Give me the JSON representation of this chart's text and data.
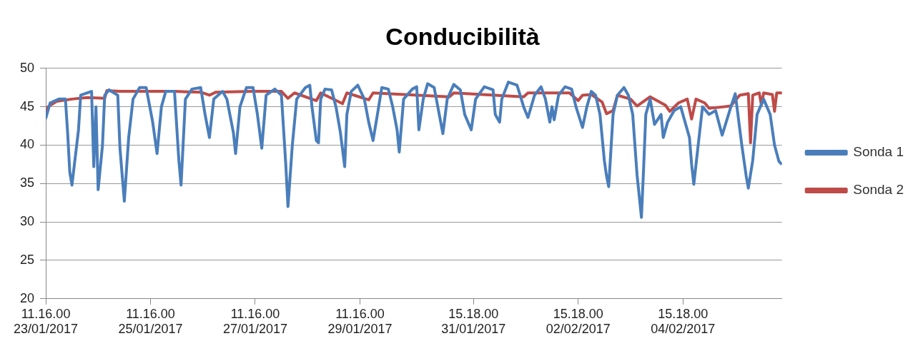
{
  "chart_data": {
    "type": "line",
    "title": "Conducibilità",
    "xlim": [
      "2017-01-23T11:16",
      "2017-02-06T12:40"
    ],
    "ylim": [
      20,
      50
    ],
    "yticks": [
      20,
      25,
      30,
      35,
      40,
      45,
      50
    ],
    "xticks": [
      {
        "value": "2017-01-23T11:16",
        "label": "11.16.00\n23/01/2017"
      },
      {
        "value": "2017-01-25T11:16",
        "label": "11.16.00\n25/01/2017"
      },
      {
        "value": "2017-01-27T11:16",
        "label": "11.16.00\n27/01/2017"
      },
      {
        "value": "2017-01-29T11:16",
        "label": "11.16.00\n29/01/2017"
      },
      {
        "value": "2017-01-31T15:18",
        "label": "15.18.00\n31/01/2017"
      },
      {
        "value": "2017-02-02T15:18",
        "label": "15.18.00\n02/02/2017"
      },
      {
        "value": "2017-02-04T15:18",
        "label": "15.18.00\n04/02/2017"
      }
    ],
    "grid": "y",
    "legend": "right",
    "marker": "none",
    "line_style": "solid",
    "series": [
      {
        "name": "Sonda 1",
        "color": "#4a7ebb",
        "x": [
          "2017-01-23T11:16",
          "2017-01-23T13:16",
          "2017-01-23T17:16",
          "2017-01-23T20:16",
          "2017-01-23T21:16",
          "2017-01-23T22:16",
          "2017-01-23T23:16",
          "2017-01-24T02:16",
          "2017-01-24T03:16",
          "2017-01-24T08:16",
          "2017-01-24T09:16",
          "2017-01-24T10:16",
          "2017-01-24T11:16",
          "2017-01-24T13:16",
          "2017-01-24T14:16",
          "2017-01-24T16:16",
          "2017-01-24T20:16",
          "2017-01-24T21:16",
          "2017-01-24T23:16",
          "2017-01-25T01:16",
          "2017-01-25T03:16",
          "2017-01-25T06:16",
          "2017-01-25T09:16",
          "2017-01-25T12:16",
          "2017-01-25T14:16",
          "2017-01-25T16:16",
          "2017-01-25T18:16",
          "2017-01-25T22:16",
          "2017-01-26T00:16",
          "2017-01-26T01:16",
          "2017-01-26T03:16",
          "2017-01-26T06:16",
          "2017-01-26T10:16",
          "2017-01-26T12:16",
          "2017-01-26T14:16",
          "2017-01-26T16:16",
          "2017-01-26T20:16",
          "2017-01-26T22:16",
          "2017-01-27T01:16",
          "2017-01-27T02:16",
          "2017-01-27T04:16",
          "2017-01-27T07:16",
          "2017-01-27T10:16",
          "2017-01-27T12:16",
          "2017-01-27T14:16",
          "2017-01-27T16:16",
          "2017-01-27T20:16",
          "2017-01-27T23:16",
          "2017-01-28T01:16",
          "2017-01-28T02:16",
          "2017-01-28T04:16",
          "2017-01-28T06:16",
          "2017-01-28T10:16",
          "2017-01-28T12:16",
          "2017-01-28T13:16",
          "2017-01-28T15:16",
          "2017-01-28T16:16",
          "2017-01-28T17:16",
          "2017-01-28T19:16",
          "2017-01-28T22:16",
          "2017-01-29T00:16",
          "2017-01-29T02:16",
          "2017-01-29T04:16",
          "2017-01-29T05:16",
          "2017-01-29T07:16",
          "2017-01-29T10:16",
          "2017-01-29T13:16",
          "2017-01-29T15:16",
          "2017-01-29T17:16",
          "2017-01-29T19:16",
          "2017-01-29T21:16",
          "2017-01-30T00:16",
          "2017-01-30T02:16",
          "2017-01-30T04:16",
          "2017-01-30T05:16",
          "2017-01-30T07:16",
          "2017-01-30T11:16",
          "2017-01-30T13:16",
          "2017-01-30T14:16",
          "2017-01-30T16:16",
          "2017-01-30T18:16",
          "2017-01-30T21:16",
          "2017-01-31T00:16",
          "2017-01-31T01:16",
          "2017-01-31T03:16",
          "2017-01-31T06:16",
          "2017-01-31T09:16",
          "2017-01-31T11:16",
          "2017-01-31T14:16",
          "2017-01-31T16:16",
          "2017-01-31T20:16",
          "2017-02-01T00:16",
          "2017-02-01T01:16",
          "2017-02-01T03:16",
          "2017-02-01T04:16",
          "2017-02-01T07:16",
          "2017-02-01T11:16",
          "2017-02-01T14:16",
          "2017-02-01T16:16",
          "2017-02-01T19:16",
          "2017-02-01T22:16",
          "2017-02-02T00:16",
          "2017-02-02T02:16",
          "2017-02-02T03:16",
          "2017-02-02T04:16",
          "2017-02-02T06:16",
          "2017-02-02T09:16",
          "2017-02-02T12:16",
          "2017-02-02T14:16",
          "2017-02-02T17:16",
          "2017-02-02T19:16",
          "2017-02-02T21:16",
          "2017-02-02T23:16",
          "2017-02-03T01:16",
          "2017-02-03T03:16",
          "2017-02-03T04:16",
          "2017-02-03T05:16",
          "2017-02-03T07:16",
          "2017-02-03T09:16",
          "2017-02-03T12:16",
          "2017-02-03T14:16",
          "2017-02-03T16:16",
          "2017-02-03T18:16",
          "2017-02-03T20:16",
          "2017-02-03T21:16",
          "2017-02-03T22:16",
          "2017-02-04T00:16",
          "2017-02-04T02:16",
          "2017-02-04T05:16",
          "2017-02-04T06:16",
          "2017-02-04T08:16",
          "2017-02-04T11:16",
          "2017-02-04T14:16",
          "2017-02-04T18:16",
          "2017-02-04T19:16",
          "2017-02-04T20:16",
          "2017-02-04T22:16",
          "2017-02-05T00:16",
          "2017-02-05T03:16",
          "2017-02-05T06:16",
          "2017-02-05T09:16",
          "2017-02-05T13:16",
          "2017-02-05T15:16",
          "2017-02-05T18:16",
          "2017-02-05T20:16",
          "2017-02-05T21:16",
          "2017-02-05T23:16",
          "2017-02-06T01:16",
          "2017-02-06T04:16",
          "2017-02-06T07:16",
          "2017-02-06T09:16",
          "2017-02-06T11:16",
          "2017-02-06T12:16"
        ],
        "values": [
          43.5,
          45.5,
          46,
          46,
          41.7,
          36.5,
          34.8,
          42,
          46.5,
          47,
          37.2,
          45,
          34.2,
          40,
          46.5,
          47.2,
          46.5,
          39.6,
          32.7,
          41,
          46,
          47.5,
          47.5,
          43,
          38.9,
          45,
          47,
          47,
          38,
          34.8,
          46,
          47.3,
          47.5,
          44,
          41,
          46,
          47,
          46,
          41.6,
          38.9,
          45,
          47.5,
          47.5,
          44,
          39.6,
          46.5,
          47.3,
          46.5,
          37.5,
          32,
          40,
          46,
          47.5,
          47.8,
          45,
          40.6,
          40.3,
          46,
          47.3,
          47.2,
          45,
          41.7,
          37.2,
          44,
          47,
          47.8,
          46,
          43,
          40.6,
          44,
          47.5,
          47.3,
          45,
          42,
          39.1,
          46,
          47.3,
          47.6,
          42,
          46,
          48,
          47.5,
          43,
          41.5,
          46,
          47.9,
          47.2,
          44,
          42,
          46,
          47.6,
          47.2,
          44,
          43,
          46,
          48.2,
          47.8,
          45,
          43.6,
          46.5,
          47.6,
          46,
          43,
          45,
          43.3,
          46.5,
          47.6,
          47.3,
          45,
          42.3,
          45,
          47,
          46.5,
          44,
          38,
          36,
          34.6,
          44,
          46.5,
          47.5,
          46.5,
          44,
          36.1,
          30.6,
          37,
          44,
          46,
          42.7,
          44,
          41,
          43,
          44.5,
          45,
          41,
          37.5,
          34.9,
          40,
          45,
          44,
          44.5,
          41.3,
          45,
          46.7,
          40,
          36,
          34.4,
          38,
          44,
          46,
          44,
          40,
          37.9,
          37.6
        ]
      },
      {
        "name": "Sonda 2",
        "color": "#be4b48",
        "x": [
          "2017-01-23T11:16",
          "2017-01-23T12:16",
          "2017-01-23T16:16",
          "2017-01-23T23:16",
          "2017-01-24T06:16",
          "2017-01-24T14:16",
          "2017-01-24T15:16",
          "2017-01-24T21:16",
          "2017-01-25T09:16",
          "2017-01-25T22:16",
          "2017-01-26T10:16",
          "2017-01-26T14:16",
          "2017-01-26T17:16",
          "2017-01-27T10:16",
          "2017-01-27T23:16",
          "2017-01-28T02:16",
          "2017-01-28T05:16",
          "2017-01-28T15:16",
          "2017-01-28T17:16",
          "2017-01-29T03:16",
          "2017-01-29T05:16",
          "2017-01-29T15:16",
          "2017-01-29T17:16",
          "2017-01-31T04:16",
          "2017-01-31T06:16",
          "2017-02-01T14:16",
          "2017-02-01T16:16",
          "2017-02-02T11:16",
          "2017-02-02T15:16",
          "2017-02-02T17:16",
          "2017-02-02T21:16",
          "2017-02-03T02:16",
          "2017-02-03T04:16",
          "2017-02-03T07:16",
          "2017-02-03T09:16",
          "2017-02-03T15:16",
          "2017-02-03T18:16",
          "2017-02-04T00:16",
          "2017-02-04T07:16",
          "2017-02-04T09:16",
          "2017-02-04T13:16",
          "2017-02-04T17:16",
          "2017-02-04T19:16",
          "2017-02-04T21:16",
          "2017-02-05T01:16",
          "2017-02-05T03:16",
          "2017-02-05T10:16",
          "2017-02-05T13:16",
          "2017-02-05T17:16",
          "2017-02-05T21:16",
          "2017-02-05T22:16",
          "2017-02-05T23:16",
          "2017-02-06T02:16",
          "2017-02-06T03:16",
          "2017-02-06T04:16",
          "2017-02-06T08:16",
          "2017-02-06T09:16",
          "2017-02-06T10:16",
          "2017-02-06T12:16"
        ],
        "values": [
          43.8,
          45,
          45.7,
          46,
          46.2,
          46.1,
          47.1,
          47,
          47,
          47,
          46.9,
          46.5,
          46.9,
          47,
          47,
          46.1,
          46.8,
          45.8,
          46.8,
          45.4,
          46.8,
          45.9,
          46.8,
          46.3,
          46.8,
          46.3,
          46.8,
          46.8,
          45.8,
          46.5,
          46.6,
          45.6,
          44.1,
          44.5,
          46.5,
          46,
          45.1,
          46.3,
          45.2,
          44.4,
          45.5,
          46,
          43.4,
          46,
          45.5,
          44.8,
          45,
          45.1,
          46.5,
          46.7,
          40.3,
          46.5,
          46.8,
          45.2,
          46.8,
          46.6,
          44.4,
          46.8,
          46.8
        ]
      }
    ]
  }
}
